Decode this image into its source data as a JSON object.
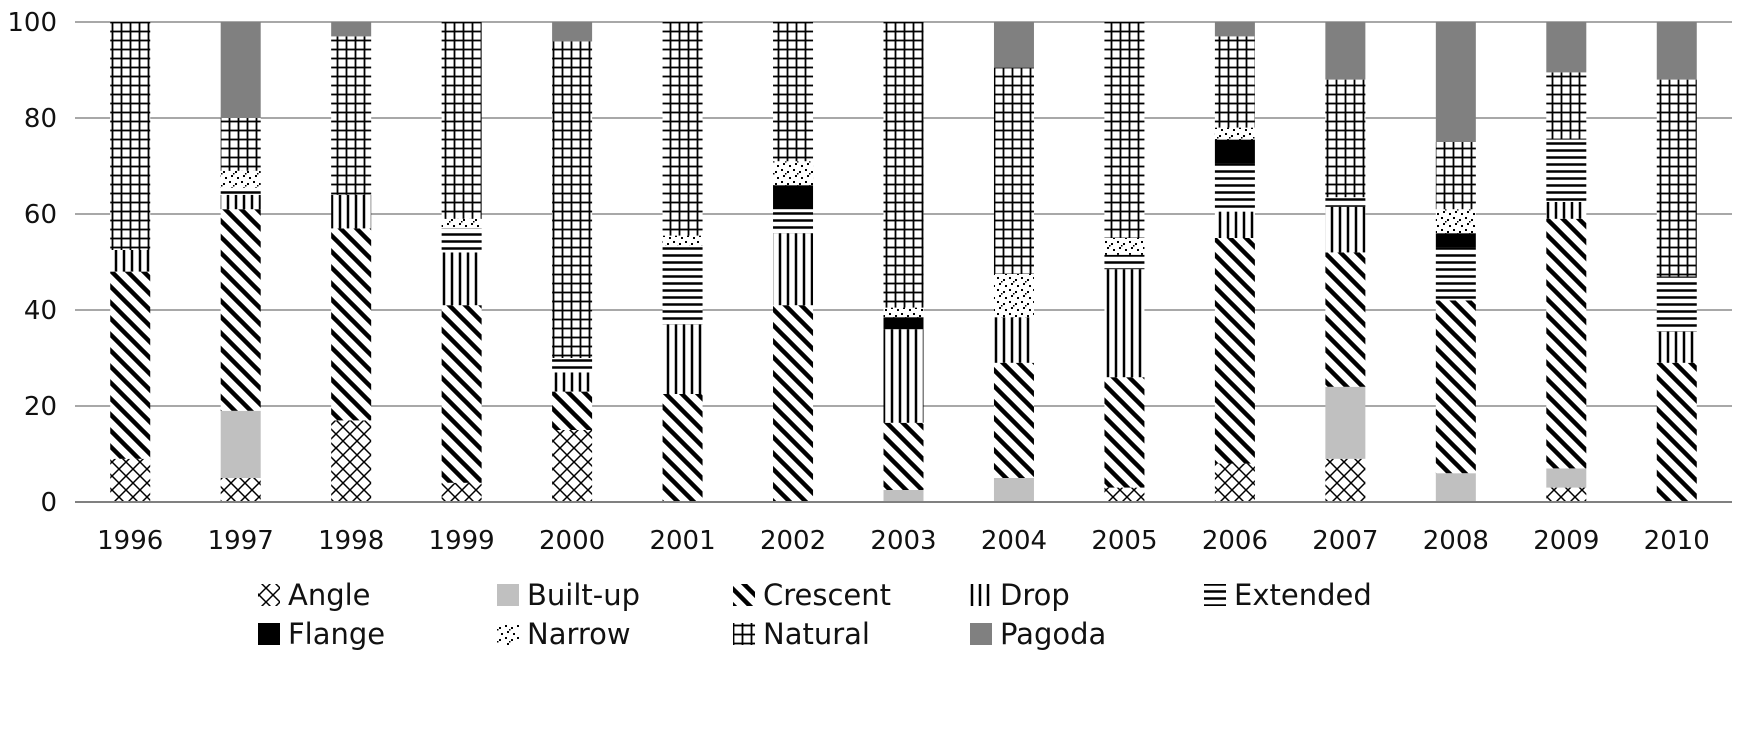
{
  "chart_data": {
    "type": "bar",
    "stacked": true,
    "title": "",
    "xlabel": "",
    "ylabel": "",
    "ylim": [
      0,
      100
    ],
    "yticks": [
      "0",
      "20",
      "40",
      "60",
      "80",
      "100"
    ],
    "grid": true,
    "legend_position": "bottom",
    "categories": [
      "1996",
      "1997",
      "1998",
      "1999",
      "2000",
      "2001",
      "2002",
      "2003",
      "2004",
      "2005",
      "2006",
      "2007",
      "2008",
      "2009",
      "2010"
    ],
    "series": [
      {
        "name": "Angle",
        "values": [
          9,
          5,
          17,
          4,
          15,
          0,
          0,
          0,
          0,
          3,
          8,
          9,
          0,
          3,
          0
        ]
      },
      {
        "name": "Built-up",
        "values": [
          0,
          14,
          0,
          0,
          0,
          0,
          0,
          2.5,
          5,
          0,
          0,
          15,
          6,
          4,
          0
        ]
      },
      {
        "name": "Crescent",
        "values": [
          39,
          42,
          40,
          37,
          8,
          22.5,
          41,
          14,
          24,
          23,
          47,
          28,
          36,
          52,
          29
        ]
      },
      {
        "name": "Drop",
        "values": [
          4.5,
          3,
          7,
          11,
          4,
          14.5,
          15,
          19.5,
          9.5,
          22.5,
          5.5,
          9.5,
          0,
          3.5,
          6.5
        ]
      },
      {
        "name": "Extended",
        "values": [
          0,
          1.5,
          0,
          5,
          3,
          16.5,
          5,
          0,
          0,
          3,
          10,
          2,
          11,
          13,
          11.5
        ]
      },
      {
        "name": "Flange",
        "values": [
          0,
          0,
          0,
          0,
          0,
          0,
          5,
          2.5,
          0,
          0,
          5,
          0,
          3,
          0,
          0
        ]
      },
      {
        "name": "Narrow",
        "values": [
          0,
          3.5,
          0,
          2,
          0,
          2,
          5,
          2,
          9,
          3.5,
          2.5,
          0,
          5,
          0,
          0
        ]
      },
      {
        "name": "Natural",
        "values": [
          47.5,
          11,
          33,
          41,
          66,
          44.5,
          29,
          59.5,
          43,
          45,
          19,
          24.5,
          14,
          14,
          41
        ]
      },
      {
        "name": "Pagoda",
        "values": [
          0,
          20,
          3,
          0,
          4,
          0,
          0,
          0,
          9.5,
          0,
          3,
          12,
          25,
          10.5,
          12
        ]
      }
    ]
  },
  "colors": {
    "Angle": "#000000",
    "Built-up": "#c0c0c0",
    "Crescent": "#000000",
    "Drop": "#000000",
    "Extended": "#000000",
    "Flange": "#000000",
    "Narrow": "#000000",
    "Natural": "#000000",
    "Pagoda": "#808080",
    "grid": "#8c8c8c",
    "axis": "#808080"
  }
}
